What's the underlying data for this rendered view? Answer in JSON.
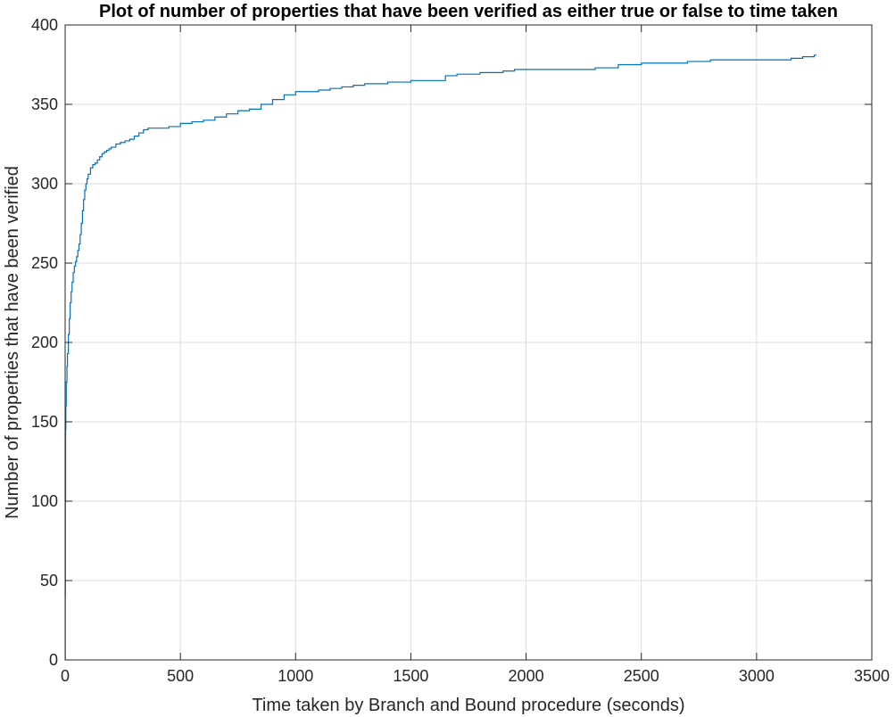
{
  "chart_data": {
    "type": "line",
    "title": "Plot of number of properties that have been verified as either true or false to time taken",
    "xlabel": "Time taken by Branch and Bound procedure (seconds)",
    "ylabel": "Number of properties that have been verified",
    "xlim": [
      0,
      3500
    ],
    "ylim": [
      0,
      400
    ],
    "xticks": [
      0,
      500,
      1000,
      1500,
      2000,
      2500,
      3000,
      3500
    ],
    "yticks": [
      0,
      50,
      100,
      150,
      200,
      250,
      300,
      350,
      400
    ],
    "grid": true,
    "line_color": "#0072BD",
    "series": [
      {
        "x": [
          0,
          0.5,
          1,
          2,
          3,
          5,
          8,
          10,
          14,
          18,
          22,
          26,
          30,
          35,
          40,
          45,
          50,
          55,
          60,
          65,
          70,
          75,
          80,
          85,
          90,
          95,
          100,
          110,
          120,
          130,
          140,
          150,
          160,
          170,
          180,
          190,
          200,
          220,
          240,
          260,
          280,
          300,
          320,
          340,
          360,
          380,
          400,
          450,
          500,
          550,
          600,
          650,
          700,
          750,
          800,
          850,
          900,
          950,
          1000,
          1050,
          1100,
          1150,
          1200,
          1250,
          1300,
          1350,
          1400,
          1450,
          1500,
          1550,
          1600,
          1650,
          1700,
          1800,
          1900,
          1950,
          2000,
          2200,
          2300,
          2400,
          2500,
          2600,
          2700,
          2800,
          2900,
          3000,
          3050,
          3100,
          3150,
          3200,
          3250,
          3260
        ],
        "values": [
          0,
          40,
          100,
          145,
          160,
          175,
          185,
          193,
          205,
          215,
          225,
          232,
          238,
          244,
          248,
          251,
          254,
          258,
          262,
          268,
          275,
          283,
          290,
          296,
          300,
          303,
          306,
          310,
          312,
          313,
          315,
          317,
          319,
          320,
          321,
          322,
          323,
          325,
          326,
          327,
          328,
          330,
          332,
          334,
          335,
          335,
          335,
          336,
          338,
          339,
          340,
          342,
          344,
          346,
          347,
          350,
          353,
          356,
          358,
          358,
          359,
          360,
          361,
          362,
          363,
          363,
          364,
          364,
          365,
          365,
          365,
          368,
          369,
          370,
          371,
          372,
          372,
          372,
          373,
          375,
          376,
          376,
          377,
          378,
          378,
          378,
          378,
          378,
          379,
          380,
          381,
          381
        ]
      }
    ]
  }
}
